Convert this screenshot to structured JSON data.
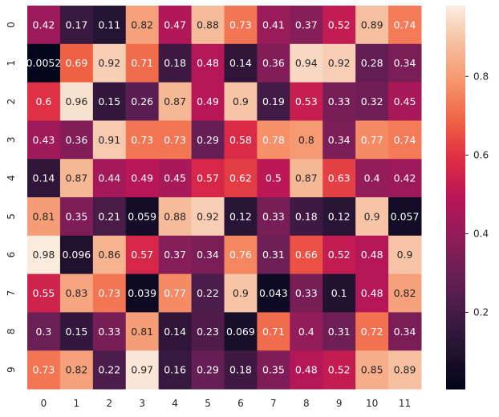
{
  "chart_data": {
    "type": "heatmap",
    "title": "",
    "xlabel": "",
    "ylabel": "",
    "colormap": "rocket",
    "x_tick_labels": [
      "0",
      "1",
      "2",
      "3",
      "4",
      "5",
      "6",
      "7",
      "8",
      "9",
      "10",
      "11"
    ],
    "y_tick_labels": [
      "0",
      "1",
      "2",
      "3",
      "4",
      "5",
      "6",
      "7",
      "8",
      "9"
    ],
    "values": [
      [
        0.42,
        0.17,
        0.11,
        0.82,
        0.47,
        0.88,
        0.73,
        0.41,
        0.37,
        0.52,
        0.89,
        0.74
      ],
      [
        0.0052,
        0.69,
        0.92,
        0.71,
        0.18,
        0.48,
        0.14,
        0.36,
        0.94,
        0.92,
        0.28,
        0.34
      ],
      [
        0.6,
        0.96,
        0.15,
        0.26,
        0.87,
        0.49,
        0.9,
        0.19,
        0.53,
        0.33,
        0.32,
        0.45
      ],
      [
        0.43,
        0.36,
        0.91,
        0.73,
        0.73,
        0.29,
        0.58,
        0.78,
        0.8,
        0.34,
        0.77,
        0.74
      ],
      [
        0.14,
        0.87,
        0.44,
        0.49,
        0.45,
        0.57,
        0.62,
        0.5,
        0.87,
        0.63,
        0.4,
        0.42
      ],
      [
        0.81,
        0.35,
        0.21,
        0.059,
        0.88,
        0.92,
        0.12,
        0.33,
        0.18,
        0.12,
        0.9,
        0.057
      ],
      [
        0.98,
        0.096,
        0.86,
        0.57,
        0.37,
        0.34,
        0.76,
        0.31,
        0.66,
        0.52,
        0.48,
        0.9
      ],
      [
        0.55,
        0.83,
        0.73,
        0.039,
        0.77,
        0.22,
        0.9,
        0.043,
        0.33,
        0.1,
        0.48,
        0.82
      ],
      [
        0.3,
        0.15,
        0.33,
        0.81,
        0.14,
        0.23,
        0.069,
        0.71,
        0.4,
        0.31,
        0.72,
        0.34
      ],
      [
        0.73,
        0.82,
        0.22,
        0.97,
        0.16,
        0.29,
        0.18,
        0.35,
        0.48,
        0.52,
        0.85,
        0.89
      ]
    ],
    "annotations": true,
    "colorbar": {
      "range": [
        0.0052,
        0.98
      ],
      "ticks": [
        0.2,
        0.4,
        0.6,
        0.8
      ],
      "tick_labels": [
        "0.2",
        "0.4",
        "0.6",
        "0.8"
      ]
    }
  }
}
